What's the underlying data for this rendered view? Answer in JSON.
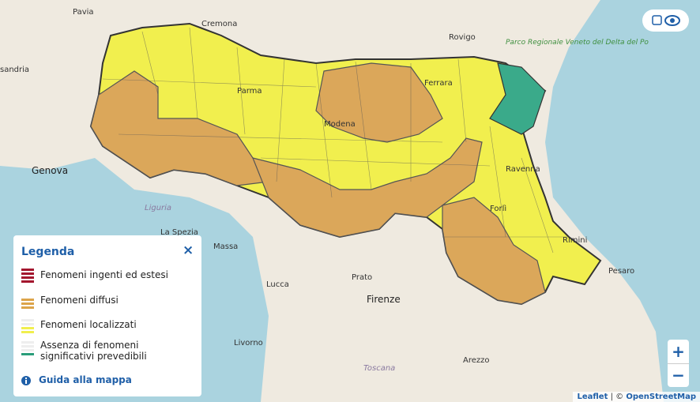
{
  "map": {
    "labels": [
      "Pavia",
      "Cremona",
      "Rovigo",
      "Parco Regionale Veneto del Delta del Po",
      "sandria",
      "Parma",
      "Ferrara",
      "Modena",
      "Genova",
      "Ravenna",
      "Liguria",
      "Forlì",
      "La Spezia",
      "Rimini",
      "Massa",
      "Pesaro",
      "Lucca",
      "Prato",
      "Firenze",
      "Livorno",
      "Arezzo",
      "Toscana"
    ]
  },
  "legend": {
    "title": "Legenda",
    "close": "×",
    "items": [
      "Fenomeni ingenti ed estesi",
      "Fenomeni diffusi",
      "Fenomeni localizzati",
      "Assenza di fenomeni significativi prevedibili"
    ],
    "guide": "Guida alla mappa"
  },
  "controls": {
    "zoom_in": "+",
    "zoom_out": "−"
  },
  "attribution": {
    "leaflet": "Leaflet",
    "separator": "| ©",
    "osm": "OpenStreetMap"
  }
}
